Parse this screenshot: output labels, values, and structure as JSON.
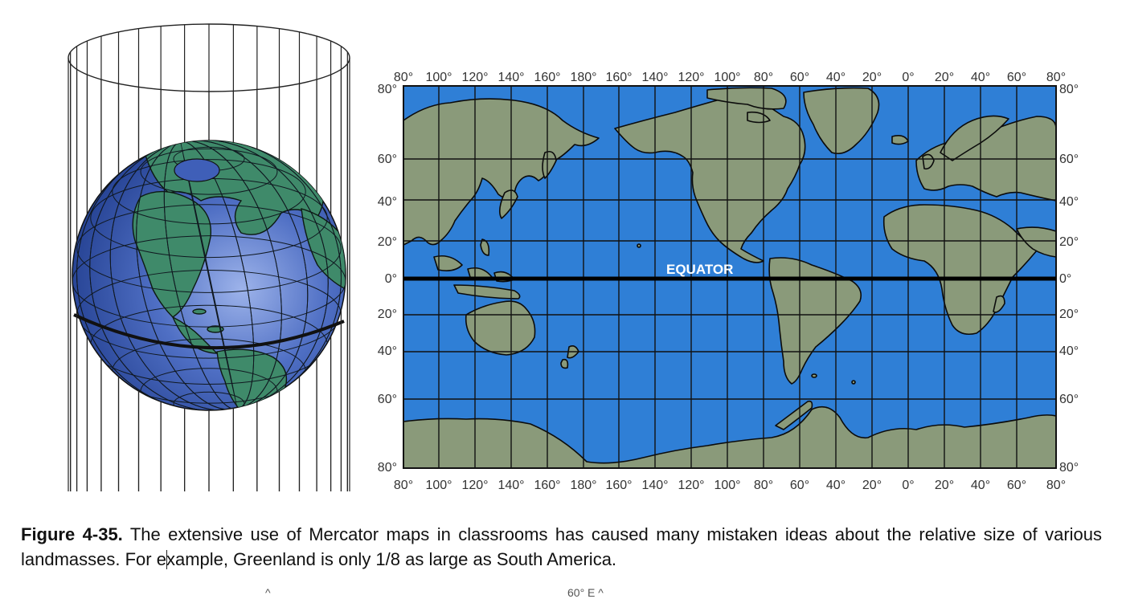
{
  "figure": {
    "label": "Figure 4-35.",
    "caption_pre": " The extensive use of Mercator maps in classrooms has caused many mistaken ideas about the relative size of various landmasses. For e",
    "caption_post": "xample, Greenland is only 1/8 as large as South America."
  },
  "map": {
    "equator_label": "EQUATOR",
    "longitude_labels": [
      "80°",
      "100°",
      "120°",
      "140°",
      "160°",
      "180°",
      "160°",
      "140°",
      "120°",
      "100°",
      "80°",
      "60°",
      "40°",
      "20°",
      "0°",
      "20°",
      "40°",
      "60°",
      "80°"
    ],
    "latitude_labels_left": [
      "80°",
      "60°",
      "40°",
      "20°",
      "0°",
      "20°",
      "40°",
      "60°",
      "80°"
    ],
    "latitude_labels_right": [
      "80°",
      "60°",
      "40°",
      "20°",
      "0°",
      "20°",
      "40°",
      "60°",
      "80°"
    ],
    "colors": {
      "ocean": "#2f7fd6",
      "land": "#8a9a7a",
      "grid": "#111111"
    }
  },
  "globe": {
    "colors": {
      "ocean": "#3f5fb8",
      "land": "#3f8a6a"
    }
  },
  "fragments": [
    "^",
    "60° E ^"
  ]
}
